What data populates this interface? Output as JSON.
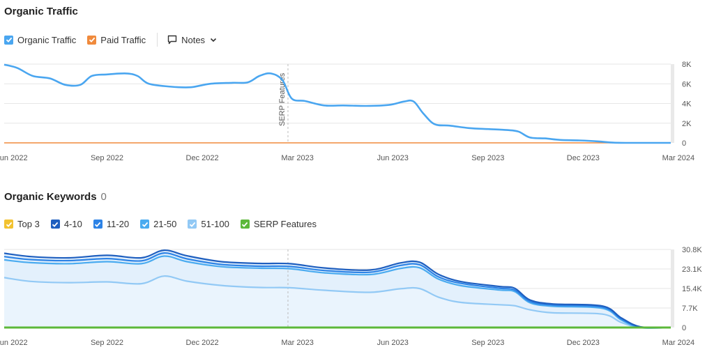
{
  "traffic": {
    "title": "Organic Traffic",
    "legend": [
      {
        "label": "Organic Traffic",
        "color": "#4aa6f0"
      },
      {
        "label": "Paid Traffic",
        "color": "#f08a3c"
      }
    ],
    "notes_label": "Notes"
  },
  "keywords": {
    "title": "Organic Keywords",
    "count": "0",
    "legend": [
      {
        "label": "Top 3",
        "color": "#f2c230"
      },
      {
        "label": "4-10",
        "color": "#1f5fbf"
      },
      {
        "label": "11-20",
        "color": "#2d83e6"
      },
      {
        "label": "21-50",
        "color": "#4aabf0"
      },
      {
        "label": "51-100",
        "color": "#92c9f5"
      },
      {
        "label": "SERP Features",
        "color": "#5cb83a"
      }
    ]
  },
  "chart_data": [
    {
      "type": "line",
      "title": "Organic Traffic",
      "x_tick_labels": [
        "Jun 2022",
        "Sep 2022",
        "Dec 2022",
        "Mar 2023",
        "Jun 2023",
        "Sep 2023",
        "Dec 2023",
        "Mar 2024"
      ],
      "y_tick_labels": [
        "8K",
        "6K",
        "4K",
        "2K",
        "0"
      ],
      "ylim": [
        0,
        8000
      ],
      "annotation": "SERP Features",
      "annotation_x": 7.25,
      "series": [
        {
          "name": "Organic Traffic",
          "color": "#4aa6f0",
          "points": [
            [
              -0.2,
              7950
            ],
            [
              0.15,
              7600
            ],
            [
              0.55,
              6800
            ],
            [
              1.0,
              6550
            ],
            [
              1.4,
              5900
            ],
            [
              1.8,
              5900
            ],
            [
              2.1,
              6800
            ],
            [
              2.5,
              6950
            ],
            [
              3.0,
              7050
            ],
            [
              3.3,
              6800
            ],
            [
              3.6,
              6000
            ],
            [
              4.2,
              5700
            ],
            [
              4.7,
              5650
            ],
            [
              5.2,
              6000
            ],
            [
              5.8,
              6100
            ],
            [
              6.2,
              6150
            ],
            [
              6.5,
              6800
            ],
            [
              6.8,
              7050
            ],
            [
              7.1,
              6400
            ],
            [
              7.35,
              4500
            ],
            [
              7.7,
              4250
            ],
            [
              8.2,
              3800
            ],
            [
              8.7,
              3800
            ],
            [
              9.3,
              3750
            ],
            [
              9.9,
              3850
            ],
            [
              10.3,
              4200
            ],
            [
              10.55,
              4200
            ],
            [
              10.8,
              3000
            ],
            [
              11.1,
              1900
            ],
            [
              11.5,
              1750
            ],
            [
              12.0,
              1500
            ],
            [
              12.5,
              1400
            ],
            [
              13.0,
              1300
            ],
            [
              13.3,
              1150
            ],
            [
              13.6,
              550
            ],
            [
              14.0,
              450
            ],
            [
              14.4,
              300
            ],
            [
              14.9,
              250
            ],
            [
              15.4,
              150
            ],
            [
              15.8,
              20
            ],
            [
              16.5,
              0
            ],
            [
              17.3,
              0
            ]
          ]
        },
        {
          "name": "Paid Traffic",
          "color": "#f08a3c",
          "points": [
            [
              -0.2,
              0
            ],
            [
              17.3,
              0
            ]
          ]
        }
      ]
    },
    {
      "type": "area",
      "title": "Organic Keywords",
      "x_tick_labels": [
        "Jun 2022",
        "Sep 2022",
        "Dec 2022",
        "Mar 2023",
        "Jun 2023",
        "Sep 2023",
        "Dec 2023",
        "Mar 2024"
      ],
      "y_tick_labels": [
        "30.8K",
        "23.1K",
        "15.4K",
        "7.7K",
        "0"
      ],
      "ylim": [
        0,
        30800
      ],
      "series": [
        {
          "name": "51-100",
          "color": "#92c9f5",
          "points": [
            [
              -0.2,
              19700
            ],
            [
              0.5,
              18200
            ],
            [
              1.5,
              17700
            ],
            [
              2.5,
              18000
            ],
            [
              3.4,
              17300
            ],
            [
              4.0,
              20300
            ],
            [
              4.6,
              18300
            ],
            [
              5.5,
              16600
            ],
            [
              6.5,
              15800
            ],
            [
              7.3,
              15700
            ],
            [
              8.2,
              14700
            ],
            [
              9.4,
              13900
            ],
            [
              10.2,
              15300
            ],
            [
              10.7,
              15400
            ],
            [
              11.2,
              12000
            ],
            [
              11.8,
              9900
            ],
            [
              12.8,
              9000
            ],
            [
              13.2,
              8600
            ],
            [
              13.6,
              7000
            ],
            [
              14.2,
              5800
            ],
            [
              15.5,
              5300
            ],
            [
              16.0,
              2000
            ],
            [
              16.5,
              0
            ],
            [
              17.3,
              0
            ]
          ]
        },
        {
          "name": "21-50",
          "color": "#4aabf0",
          "points": [
            [
              -0.2,
              26700
            ],
            [
              0.5,
              25600
            ],
            [
              1.5,
              25200
            ],
            [
              2.5,
              26000
            ],
            [
              3.4,
              25200
            ],
            [
              4.0,
              28200
            ],
            [
              4.6,
              26000
            ],
            [
              5.5,
              24000
            ],
            [
              6.5,
              23400
            ],
            [
              7.3,
              23200
            ],
            [
              8.2,
              21600
            ],
            [
              9.4,
              20900
            ],
            [
              10.2,
              23300
            ],
            [
              10.7,
              23600
            ],
            [
              11.2,
              19100
            ],
            [
              11.8,
              16500
            ],
            [
              12.8,
              14800
            ],
            [
              13.2,
              14200
            ],
            [
              13.6,
              9800
            ],
            [
              14.2,
              8400
            ],
            [
              15.5,
              7600
            ],
            [
              16.0,
              3000
            ],
            [
              16.5,
              0
            ],
            [
              17.3,
              0
            ]
          ]
        },
        {
          "name": "11-20",
          "color": "#2d83e6",
          "points": [
            [
              -0.2,
              28000
            ],
            [
              0.5,
              26800
            ],
            [
              1.5,
              26400
            ],
            [
              2.5,
              27200
            ],
            [
              3.4,
              26300
            ],
            [
              4.0,
              29400
            ],
            [
              4.6,
              27100
            ],
            [
              5.5,
              24900
            ],
            [
              6.5,
              24200
            ],
            [
              7.3,
              24100
            ],
            [
              8.2,
              22500
            ],
            [
              9.4,
              21800
            ],
            [
              10.2,
              24500
            ],
            [
              10.7,
              24800
            ],
            [
              11.2,
              20000
            ],
            [
              11.8,
              17400
            ],
            [
              12.8,
              15500
            ],
            [
              13.2,
              14800
            ],
            [
              13.6,
              10300
            ],
            [
              14.2,
              8900
            ],
            [
              15.5,
              8100
            ],
            [
              16.0,
              3400
            ],
            [
              16.5,
              200
            ],
            [
              17.3,
              0
            ]
          ]
        },
        {
          "name": "4-10",
          "color": "#1f5fbf",
          "points": [
            [
              -0.2,
              29300
            ],
            [
              0.5,
              28000
            ],
            [
              1.5,
              27500
            ],
            [
              2.5,
              28500
            ],
            [
              3.4,
              27500
            ],
            [
              4.0,
              30500
            ],
            [
              4.6,
              28300
            ],
            [
              5.5,
              26000
            ],
            [
              6.5,
              25300
            ],
            [
              7.3,
              25200
            ],
            [
              8.2,
              23500
            ],
            [
              9.4,
              22700
            ],
            [
              10.2,
              25500
            ],
            [
              10.7,
              25800
            ],
            [
              11.2,
              21000
            ],
            [
              11.8,
              18100
            ],
            [
              12.8,
              16200
            ],
            [
              13.2,
              15500
            ],
            [
              13.6,
              10900
            ],
            [
              14.2,
              9300
            ],
            [
              15.5,
              8500
            ],
            [
              16.0,
              3800
            ],
            [
              16.5,
              300
            ],
            [
              17.3,
              0
            ]
          ]
        },
        {
          "name": "SERP Features",
          "color": "#5cb83a",
          "points": [
            [
              -0.2,
              0
            ],
            [
              17.3,
              0
            ]
          ]
        }
      ]
    }
  ]
}
